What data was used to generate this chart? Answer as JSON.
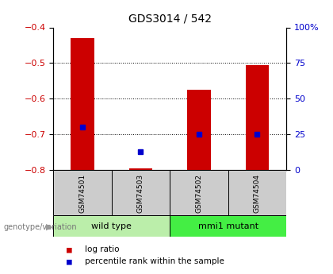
{
  "title": "GDS3014 / 542",
  "samples": [
    "GSM74501",
    "GSM74503",
    "GSM74502",
    "GSM74504"
  ],
  "log_ratios": [
    -0.43,
    -0.795,
    -0.575,
    -0.505
  ],
  "percentile_ranks": [
    30,
    13,
    25,
    25
  ],
  "bar_bottom": -0.8,
  "ylim_left": [
    -0.8,
    -0.4
  ],
  "ylim_right": [
    0,
    100
  ],
  "right_ticks": [
    0,
    25,
    50,
    75,
    100
  ],
  "right_tick_labels": [
    "0",
    "25",
    "50",
    "75",
    "100%"
  ],
  "left_ticks": [
    -0.8,
    -0.7,
    -0.6,
    -0.5,
    -0.4
  ],
  "gridlines": [
    -0.7,
    -0.6,
    -0.5
  ],
  "groups": [
    {
      "label": "wild type",
      "cols": [
        0,
        1
      ],
      "color": "#bbeeaa"
    },
    {
      "label": "mmi1 mutant",
      "cols": [
        2,
        3
      ],
      "color": "#44ee44"
    }
  ],
  "sample_box_color": "#cccccc",
  "bar_color": "#cc0000",
  "dot_color": "#0000cc",
  "bg_color": "#ffffff",
  "left_label_color": "#cc0000",
  "right_label_color": "#0000cc",
  "geno_label": "genotype/variation",
  "legend": [
    {
      "color": "#cc0000",
      "label": "log ratio"
    },
    {
      "color": "#0000cc",
      "label": "percentile rank within the sample"
    }
  ]
}
